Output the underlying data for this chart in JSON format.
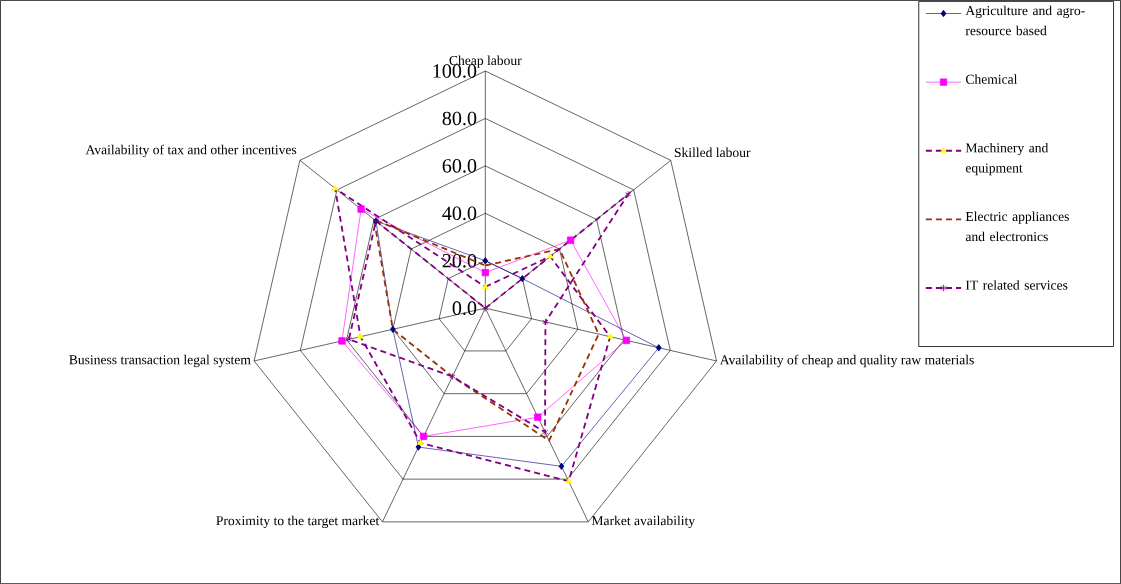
{
  "chart_data": {
    "type": "radar",
    "categories": [
      "Cheap labour",
      "Skilled labour",
      "Availability of cheap and quality raw materials",
      "Market availability",
      "Proximity to the target market",
      "Business transaction legal system",
      "Availability of tax and other incentives"
    ],
    "ylim": [
      0,
      100
    ],
    "yticks": [
      {
        "value": 0,
        "label": "0.0"
      },
      {
        "value": 20,
        "label": "20.0"
      },
      {
        "value": 40,
        "label": "40.0"
      },
      {
        "value": 60,
        "label": "60.0"
      },
      {
        "value": 80,
        "label": "80.0"
      },
      {
        "value": 100,
        "label": "100.0"
      }
    ],
    "legend": "right",
    "series": [
      {
        "name": "Agriculture and agro-resource based",
        "color": "#000080",
        "marker": "diamond",
        "line_style": "solid",
        "values": [
          20,
          20,
          75,
          74,
          65,
          40,
          59
        ]
      },
      {
        "name": "Chemical",
        "color": "#ff00ff",
        "marker": "square",
        "line_style": "solid",
        "values": [
          15,
          46,
          61,
          51,
          60,
          62,
          67
        ]
      },
      {
        "name": "Machinery and equipment",
        "color": "#800080",
        "colors": [
          "#ffff00",
          "#ffff00",
          "#ffff00",
          "#ffff00",
          "#ffff00",
          "#ffff00",
          "#ffff00"
        ],
        "marker": "triangle",
        "line_style": "dashed",
        "values": [
          9,
          35,
          54,
          81,
          63,
          54,
          81
        ]
      },
      {
        "name": "Electric appliances and electronics",
        "color": "#993300",
        "marker": "none",
        "line_style": "dashed",
        "values": [
          18,
          40,
          49,
          62,
          32,
          40,
          60
        ]
      },
      {
        "name": "IT related services",
        "color": "#800080",
        "marker": "star",
        "line_style": "dashed",
        "values": [
          0,
          77,
          26,
          58,
          32,
          59,
          59
        ]
      }
    ]
  }
}
